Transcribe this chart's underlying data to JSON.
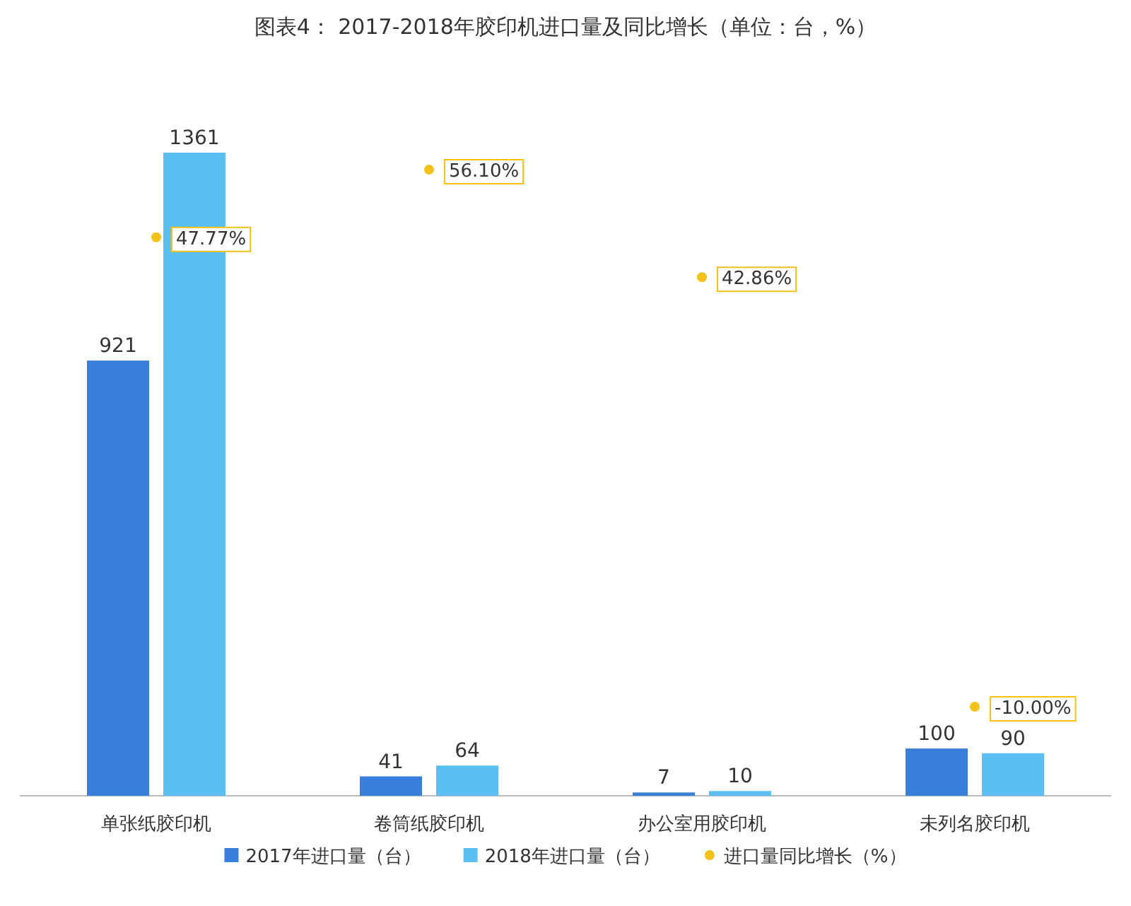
{
  "chart_data": {
    "type": "bar",
    "title": "图表4： 2017-2018年胶印机进口量及同比增长（单位：台，%）",
    "categories": [
      "单张纸胶印机",
      "卷筒纸胶印机",
      "办公室用胶印机",
      "未列名胶印机"
    ],
    "series": [
      {
        "name": "2017年进口量（台）",
        "color": "#3a7fd9",
        "values": [
          921,
          41,
          7,
          100
        ]
      },
      {
        "name": "2018年进口量（台）",
        "color": "#5cbff2",
        "values": [
          1361,
          64,
          10,
          90
        ]
      },
      {
        "name": "进口量同比增长（%）",
        "color": "#f2c21b",
        "type": "scatter",
        "axis": "y2",
        "marker": "circle",
        "values": [
          47.77,
          56.1,
          42.86,
          -10.0
        ],
        "value_labels": [
          "47.77%",
          "56.10%",
          "42.86%",
          "-10.00%"
        ]
      }
    ],
    "data_labels": true,
    "legend": "bottom",
    "grid": false
  }
}
